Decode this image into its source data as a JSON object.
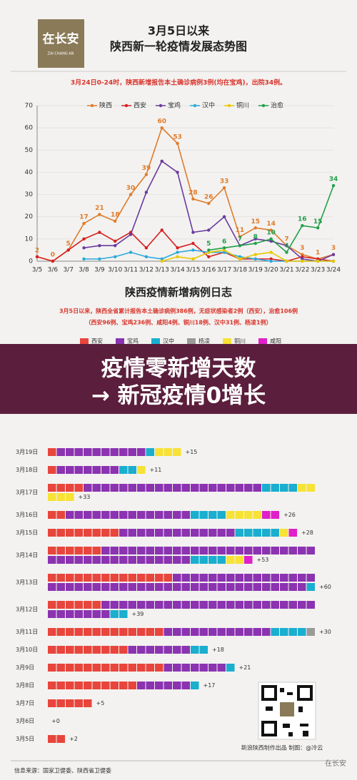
{
  "header": {
    "logo": "在长安",
    "logo_sub": "ZAI CHANG AN",
    "title_line1": "3月5日以来",
    "title_line2": "陕西新一轮疫情发展态势图"
  },
  "chart_data": [
    {
      "type": "line",
      "subtitle": "3月24日0-24时，陕西新增报告本土确诊病例3例(均在宝鸡)，出院34例。",
      "categories": [
        "3/5",
        "3/6",
        "3/7",
        "3/8",
        "3/9",
        "3/10",
        "3/11",
        "3/12",
        "3/13",
        "3/14",
        "3/15",
        "3/16",
        "3/17",
        "3/18",
        "3/19",
        "3/20",
        "3/21",
        "3/22",
        "3/23",
        "3/24"
      ],
      "ylim": [
        0,
        70
      ],
      "yticks": [
        0,
        10,
        20,
        30,
        40,
        50,
        60,
        70
      ],
      "grid": true,
      "series": [
        {
          "name": "陕西",
          "color": "#e07b2a",
          "labels": true,
          "values": [
            2,
            0,
            5,
            17,
            21,
            18,
            30,
            39,
            60,
            53,
            28,
            26,
            33,
            11,
            15,
            14,
            7,
            3,
            1,
            3
          ]
        },
        {
          "name": "西安",
          "color": "#d62020",
          "values": [
            2,
            0,
            5,
            10,
            13,
            9,
            13,
            6,
            14,
            6,
            8,
            2,
            4,
            1,
            1,
            1,
            0,
            2,
            1,
            0
          ]
        },
        {
          "name": "宝鸡",
          "color": "#6a3aa0",
          "values": [
            null,
            null,
            null,
            6,
            7,
            7,
            12,
            31,
            45,
            40,
            13,
            14,
            20,
            7,
            10,
            9,
            7,
            1,
            0,
            3
          ]
        },
        {
          "name": "汉中",
          "color": "#2aa8dc",
          "values": [
            null,
            null,
            null,
            1,
            1,
            2,
            4,
            2,
            1,
            4,
            5,
            4,
            4,
            2,
            1,
            0,
            0,
            0,
            0,
            0
          ]
        },
        {
          "name": "铜川",
          "color": "#e8c800",
          "values": [
            null,
            null,
            null,
            null,
            null,
            null,
            null,
            null,
            0,
            2,
            1,
            4,
            5,
            1,
            3,
            4,
            0,
            0,
            0,
            0
          ]
        },
        {
          "name": "治愈",
          "color": "#22a04a",
          "labels": true,
          "values": [
            null,
            null,
            null,
            null,
            null,
            null,
            null,
            null,
            null,
            null,
            null,
            5,
            6,
            7,
            8,
            10,
            4,
            16,
            15,
            34
          ]
        }
      ]
    },
    {
      "type": "block",
      "title": "陕西疫情新增病例日志",
      "note_line1": "3月5日以来，陕西全省累计报告本土确诊病例386例，无症状感染者2例（西安），治愈106例",
      "note_line2": "（西安96例、宝鸡236例、咸阳4例、铜川18例、汉中31例、杨凌1例）",
      "categories": [
        "3月19日",
        "3月18日",
        "3月17日",
        "3月16日",
        "3月15日",
        "3月14日",
        "3月13日",
        "3月12日",
        "3月11日",
        "3月10日",
        "3月9日",
        "3月8日",
        "3月7日",
        "3月6日",
        "3月5日"
      ],
      "total_labels": [
        "+15",
        "+11",
        "+33",
        "+26",
        "+28",
        "+53",
        "+60",
        "+39",
        "+30",
        "+18",
        "+21",
        "+17",
        "+5",
        "+0",
        "+2"
      ],
      "series": [
        {
          "name": "西安",
          "color": "#e8453c",
          "values": [
            1,
            1,
            4,
            2,
            8,
            6,
            14,
            6,
            13,
            9,
            13,
            10,
            5,
            0,
            2
          ]
        },
        {
          "name": "宝鸡",
          "color": "#8b33b0",
          "values": [
            10,
            7,
            20,
            14,
            13,
            40,
            45,
            31,
            12,
            7,
            7,
            6,
            0,
            0,
            0
          ]
        },
        {
          "name": "汉中",
          "color": "#1aaecf",
          "values": [
            1,
            2,
            4,
            4,
            5,
            4,
            1,
            2,
            4,
            2,
            1,
            1,
            0,
            0,
            0
          ]
        },
        {
          "name": "杨凌",
          "color": "#9a9a9a",
          "values": [
            0,
            0,
            0,
            0,
            0,
            0,
            0,
            0,
            1,
            0,
            0,
            0,
            0,
            0,
            0
          ]
        },
        {
          "name": "铜川",
          "color": "#f7e235",
          "values": [
            3,
            1,
            5,
            4,
            1,
            2,
            0,
            0,
            0,
            0,
            0,
            0,
            0,
            0,
            0
          ]
        },
        {
          "name": "咸阳",
          "color": "#e020c8",
          "values": [
            0,
            0,
            0,
            2,
            1,
            1,
            0,
            0,
            0,
            0,
            0,
            0,
            0,
            0,
            0
          ]
        }
      ]
    }
  ],
  "banner": {
    "line1": "疫情零新增天数",
    "line2": "→ 新冠疫情0增长"
  },
  "footer": {
    "credit": "新浪陕西制作出品 制图：@冷云",
    "source": "信息来源：国家卫健委、陕西省卫健委",
    "watermark": "在长安"
  }
}
